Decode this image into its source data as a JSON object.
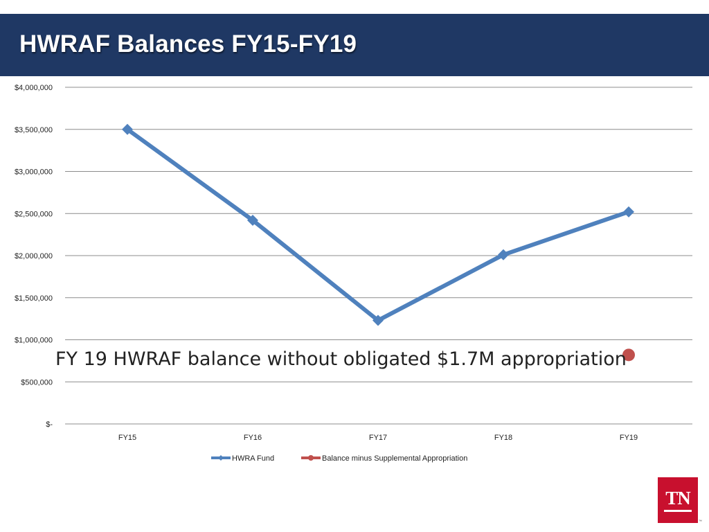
{
  "header": {
    "title": "HWRAF Balances FY15-FY19"
  },
  "logo": {
    "text": "TN",
    "color": "#c8102e"
  },
  "annotation": {
    "text": "FY 19 HWRAF balance without obligated $1.7M appropriation"
  },
  "colors": {
    "header_bg": "#1f3864",
    "series_blue": "#4f81bd",
    "series_red": "#c0504d"
  },
  "chart_data": {
    "type": "line",
    "categories": [
      "FY15",
      "FY16",
      "FY17",
      "FY18",
      "FY19"
    ],
    "ylim": [
      0,
      4000000
    ],
    "yticks": [
      0,
      500000,
      1000000,
      1500000,
      2000000,
      2500000,
      3000000,
      3500000,
      4000000
    ],
    "ytick_labels": [
      "$-",
      "$500,000",
      "$1,000,000",
      "$1,500,000",
      "$2,000,000",
      "$2,500,000",
      "$3,000,000",
      "$3,500,000",
      "$4,000,000"
    ],
    "grid": true,
    "legend_position": "bottom",
    "series": [
      {
        "name": "HWRA Fund",
        "values": [
          3500000,
          2420000,
          1230000,
          2010000,
          2520000
        ],
        "color": "#4f81bd",
        "marker": "diamond"
      },
      {
        "name": "Balance minus Supplemental Appropriation",
        "values": [
          null,
          null,
          null,
          null,
          820000
        ],
        "color": "#c0504d",
        "marker": "circle"
      }
    ]
  }
}
